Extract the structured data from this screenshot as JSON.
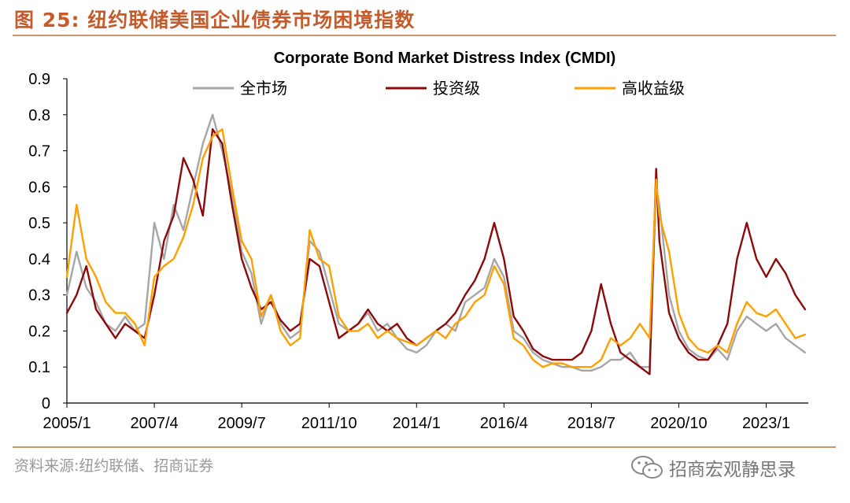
{
  "header": {
    "figure_label": "图 25:",
    "figure_title": "纽约联储美国企业债券市场困境指数"
  },
  "footer": {
    "source": "资料来源:纽约联储、招商证券",
    "watermark": "招商宏观静思录",
    "watermark_icon": "wechat-icon"
  },
  "colors": {
    "header_text": "#c55a2b",
    "rule": "#c8956c",
    "all_market": "#a6a6a6",
    "investment_grade": "#8b0a0a",
    "high_yield": "#ffa000"
  },
  "chart_data": {
    "type": "line",
    "title": "Corporate Bond Market Distress Index (CMDI)",
    "ylim": [
      0,
      0.9
    ],
    "y_ticks": [
      "0",
      "0.1",
      "0.2",
      "0.3",
      "0.4",
      "0.5",
      "0.6",
      "0.7",
      "0.8",
      "0.9"
    ],
    "x_ticks": [
      "2005/1",
      "2007/4",
      "2009/7",
      "2011/10",
      "2014/1",
      "2016/4",
      "2018/7",
      "2020/10",
      "2023/1"
    ],
    "xlim": [
      "2005-01",
      "2024-02"
    ],
    "grid": false,
    "legend_position": "top",
    "x": [
      "2005-01",
      "2005-04",
      "2005-07",
      "2005-10",
      "2006-01",
      "2006-04",
      "2006-07",
      "2006-10",
      "2007-01",
      "2007-04",
      "2007-07",
      "2007-10",
      "2008-01",
      "2008-04",
      "2008-07",
      "2008-10",
      "2009-01",
      "2009-04",
      "2009-07",
      "2009-10",
      "2010-01",
      "2010-04",
      "2010-07",
      "2010-10",
      "2011-01",
      "2011-04",
      "2011-07",
      "2011-10",
      "2012-01",
      "2012-04",
      "2012-07",
      "2012-10",
      "2013-01",
      "2013-04",
      "2013-07",
      "2013-10",
      "2014-01",
      "2014-04",
      "2014-07",
      "2014-10",
      "2015-01",
      "2015-04",
      "2015-07",
      "2015-10",
      "2016-01",
      "2016-04",
      "2016-07",
      "2016-10",
      "2017-01",
      "2017-04",
      "2017-07",
      "2017-10",
      "2018-01",
      "2018-04",
      "2018-07",
      "2018-10",
      "2019-01",
      "2019-04",
      "2019-07",
      "2019-10",
      "2020-01",
      "2020-03",
      "2020-04",
      "2020-07",
      "2020-10",
      "2021-01",
      "2021-04",
      "2021-07",
      "2021-10",
      "2022-01",
      "2022-04",
      "2022-07",
      "2022-10",
      "2023-01",
      "2023-04",
      "2023-07",
      "2023-10",
      "2024-01"
    ],
    "series": [
      {
        "name": "全市场",
        "color": "#a6a6a6",
        "values": [
          0.3,
          0.42,
          0.32,
          0.28,
          0.22,
          0.2,
          0.24,
          0.2,
          0.22,
          0.5,
          0.4,
          0.55,
          0.48,
          0.6,
          0.72,
          0.8,
          0.7,
          0.58,
          0.42,
          0.36,
          0.22,
          0.3,
          0.22,
          0.18,
          0.2,
          0.45,
          0.42,
          0.32,
          0.22,
          0.2,
          0.22,
          0.25,
          0.2,
          0.22,
          0.18,
          0.15,
          0.14,
          0.16,
          0.2,
          0.22,
          0.2,
          0.28,
          0.3,
          0.32,
          0.4,
          0.35,
          0.2,
          0.18,
          0.14,
          0.12,
          0.11,
          0.1,
          0.1,
          0.09,
          0.09,
          0.1,
          0.12,
          0.12,
          0.14,
          0.1,
          0.1,
          0.6,
          0.55,
          0.3,
          0.2,
          0.15,
          0.13,
          0.12,
          0.15,
          0.12,
          0.2,
          0.24,
          0.22,
          0.2,
          0.22,
          0.18,
          0.16,
          0.14
        ]
      },
      {
        "name": "投资级",
        "color": "#8b0a0a",
        "values": [
          0.25,
          0.3,
          0.38,
          0.26,
          0.22,
          0.18,
          0.22,
          0.2,
          0.18,
          0.3,
          0.45,
          0.52,
          0.68,
          0.62,
          0.52,
          0.76,
          0.72,
          0.55,
          0.4,
          0.32,
          0.26,
          0.28,
          0.23,
          0.2,
          0.22,
          0.4,
          0.38,
          0.28,
          0.18,
          0.2,
          0.22,
          0.26,
          0.22,
          0.2,
          0.22,
          0.18,
          0.16,
          0.18,
          0.2,
          0.22,
          0.25,
          0.3,
          0.34,
          0.4,
          0.5,
          0.4,
          0.24,
          0.2,
          0.15,
          0.13,
          0.12,
          0.12,
          0.12,
          0.14,
          0.2,
          0.33,
          0.22,
          0.14,
          0.12,
          0.1,
          0.08,
          0.65,
          0.45,
          0.25,
          0.18,
          0.14,
          0.12,
          0.12,
          0.16,
          0.22,
          0.4,
          0.5,
          0.4,
          0.35,
          0.4,
          0.36,
          0.3,
          0.26
        ]
      },
      {
        "name": "高收益级",
        "color": "#ffa000",
        "values": [
          0.35,
          0.55,
          0.4,
          0.35,
          0.28,
          0.25,
          0.25,
          0.22,
          0.16,
          0.35,
          0.38,
          0.4,
          0.46,
          0.55,
          0.68,
          0.74,
          0.76,
          0.6,
          0.45,
          0.4,
          0.24,
          0.3,
          0.2,
          0.16,
          0.18,
          0.48,
          0.4,
          0.38,
          0.24,
          0.2,
          0.2,
          0.22,
          0.18,
          0.2,
          0.18,
          0.17,
          0.16,
          0.18,
          0.2,
          0.18,
          0.22,
          0.24,
          0.28,
          0.3,
          0.38,
          0.33,
          0.18,
          0.16,
          0.12,
          0.1,
          0.11,
          0.11,
          0.1,
          0.1,
          0.1,
          0.12,
          0.18,
          0.16,
          0.18,
          0.22,
          0.18,
          0.62,
          0.52,
          0.42,
          0.25,
          0.18,
          0.15,
          0.14,
          0.16,
          0.14,
          0.22,
          0.28,
          0.25,
          0.24,
          0.26,
          0.22,
          0.18,
          0.19
        ]
      }
    ]
  }
}
